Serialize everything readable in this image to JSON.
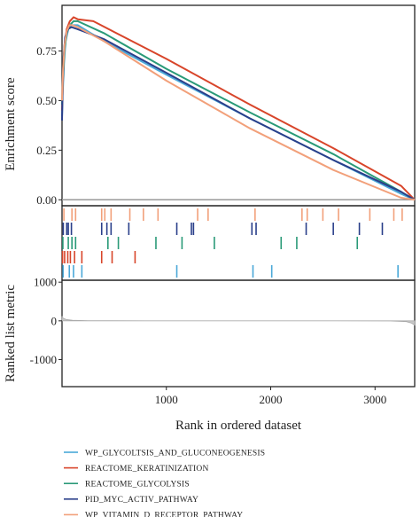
{
  "chart_data": {
    "type": "line",
    "colors": {
      "WP_GLYCOLTSIS_AND_GLUCONEOGENESIS": "#4aa8d8",
      "REACTOME_KERATINIZATION": "#d8452a",
      "REACTOME_GLYCOLYSIS": "#2a9a78",
      "PID_MYC_ACTIV_PATHWAY": "#2a3f8a",
      "WP_VITAMIN_D_RECEPTOR_PATHWAY": "#f2a07a"
    },
    "top_panel": {
      "ylabel": "Enrichment score",
      "yticks": [
        "0.00",
        "0.25",
        "0.50",
        "0.75"
      ],
      "yrange": [
        -0.03,
        0.98
      ],
      "xrange": [
        0,
        3380
      ],
      "series": [
        {
          "name": "WP_GLYCOLTSIS_AND_GLUCONEOGENESIS",
          "x": [
            0,
            8,
            20,
            35,
            60,
            90,
            150,
            400,
            1000,
            1800,
            2600,
            3250,
            3380
          ],
          "y": [
            0.42,
            0.55,
            0.7,
            0.8,
            0.86,
            0.88,
            0.88,
            0.8,
            0.63,
            0.41,
            0.2,
            0.03,
            0.0
          ]
        },
        {
          "name": "REACTOME_KERATINIZATION",
          "x": [
            0,
            10,
            25,
            45,
            75,
            110,
            150,
            300,
            1000,
            1800,
            2600,
            3250,
            3380
          ],
          "y": [
            0.45,
            0.62,
            0.78,
            0.86,
            0.9,
            0.92,
            0.91,
            0.9,
            0.71,
            0.48,
            0.26,
            0.07,
            0.0
          ]
        },
        {
          "name": "REACTOME_GLYCOLYSIS",
          "x": [
            0,
            10,
            25,
            45,
            75,
            110,
            150,
            400,
            1000,
            1800,
            2600,
            3250,
            3380
          ],
          "y": [
            0.48,
            0.62,
            0.76,
            0.84,
            0.88,
            0.9,
            0.9,
            0.84,
            0.66,
            0.44,
            0.23,
            0.04,
            0.0
          ]
        },
        {
          "name": "PID_MYC_ACTIV_PATHWAY",
          "x": [
            0,
            5,
            15,
            30,
            55,
            90,
            150,
            400,
            1000,
            1800,
            2600,
            3250,
            3380
          ],
          "y": [
            0.4,
            0.55,
            0.72,
            0.82,
            0.86,
            0.87,
            0.86,
            0.81,
            0.64,
            0.41,
            0.2,
            0.04,
            0.0
          ]
        },
        {
          "name": "WP_VITAMIN_D_RECEPTOR_PATHWAY",
          "x": [
            0,
            10,
            25,
            45,
            70,
            100,
            150,
            400,
            1000,
            1800,
            2600,
            3250,
            3380
          ],
          "y": [
            0.5,
            0.66,
            0.78,
            0.85,
            0.88,
            0.88,
            0.87,
            0.8,
            0.6,
            0.36,
            0.15,
            0.01,
            0.0
          ]
        }
      ]
    },
    "hit_panel": {
      "rows": [
        {
          "name": "WP_VITAMIN_D_RECEPTOR_PATHWAY",
          "hits": [
            18,
            95,
            130,
            380,
            410,
            470,
            650,
            780,
            920,
            1300,
            1400,
            1850,
            2300,
            2350,
            2500,
            2650,
            2950,
            3180,
            3260
          ]
        },
        {
          "name": "PID_MYC_ACTIV_PATHWAY",
          "hits": [
            12,
            45,
            60,
            90,
            380,
            430,
            470,
            640,
            1100,
            1240,
            1260,
            1820,
            1860,
            2340,
            2600,
            2850,
            3070
          ]
        },
        {
          "name": "REACTOME_GLYCOLYSIS",
          "hits": [
            8,
            60,
            95,
            130,
            440,
            540,
            900,
            1150,
            1460,
            2100,
            2250,
            2830
          ]
        },
        {
          "name": "REACTOME_KERATINIZATION",
          "hits": [
            5,
            25,
            55,
            80,
            120,
            190,
            380,
            480,
            700
          ]
        },
        {
          "name": "WP_GLYCOLTSIS_AND_GLUCONEOGENESIS",
          "hits": [
            10,
            70,
            110,
            190,
            1100,
            1830,
            2010,
            3220
          ]
        }
      ]
    },
    "bottom_panel": {
      "ylabel": "Ranked list metric",
      "yticks": [
        "1000",
        "0",
        "-1000"
      ],
      "yrange": [
        -1700,
        1050
      ],
      "xlabel": "Rank in ordered dataset",
      "xticks": [
        "1000",
        "2000",
        "3000"
      ],
      "xrange": [
        0,
        3380
      ],
      "metric": {
        "x": [
          0,
          10,
          40,
          100,
          250,
          800,
          2600,
          3150,
          3300,
          3350,
          3380
        ],
        "y": [
          120,
          70,
          35,
          15,
          5,
          0,
          0,
          -5,
          -20,
          -60,
          -110
        ]
      }
    },
    "legend": [
      "WP_GLYCOLTSIS_AND_GLUCONEOGENESIS",
      "REACTOME_KERATINIZATION",
      "REACTOME_GLYCOLYSIS",
      "PID_MYC_ACTIV_PATHWAY",
      "WP_VITAMIN_D_RECEPTOR_PATHWAY"
    ]
  }
}
